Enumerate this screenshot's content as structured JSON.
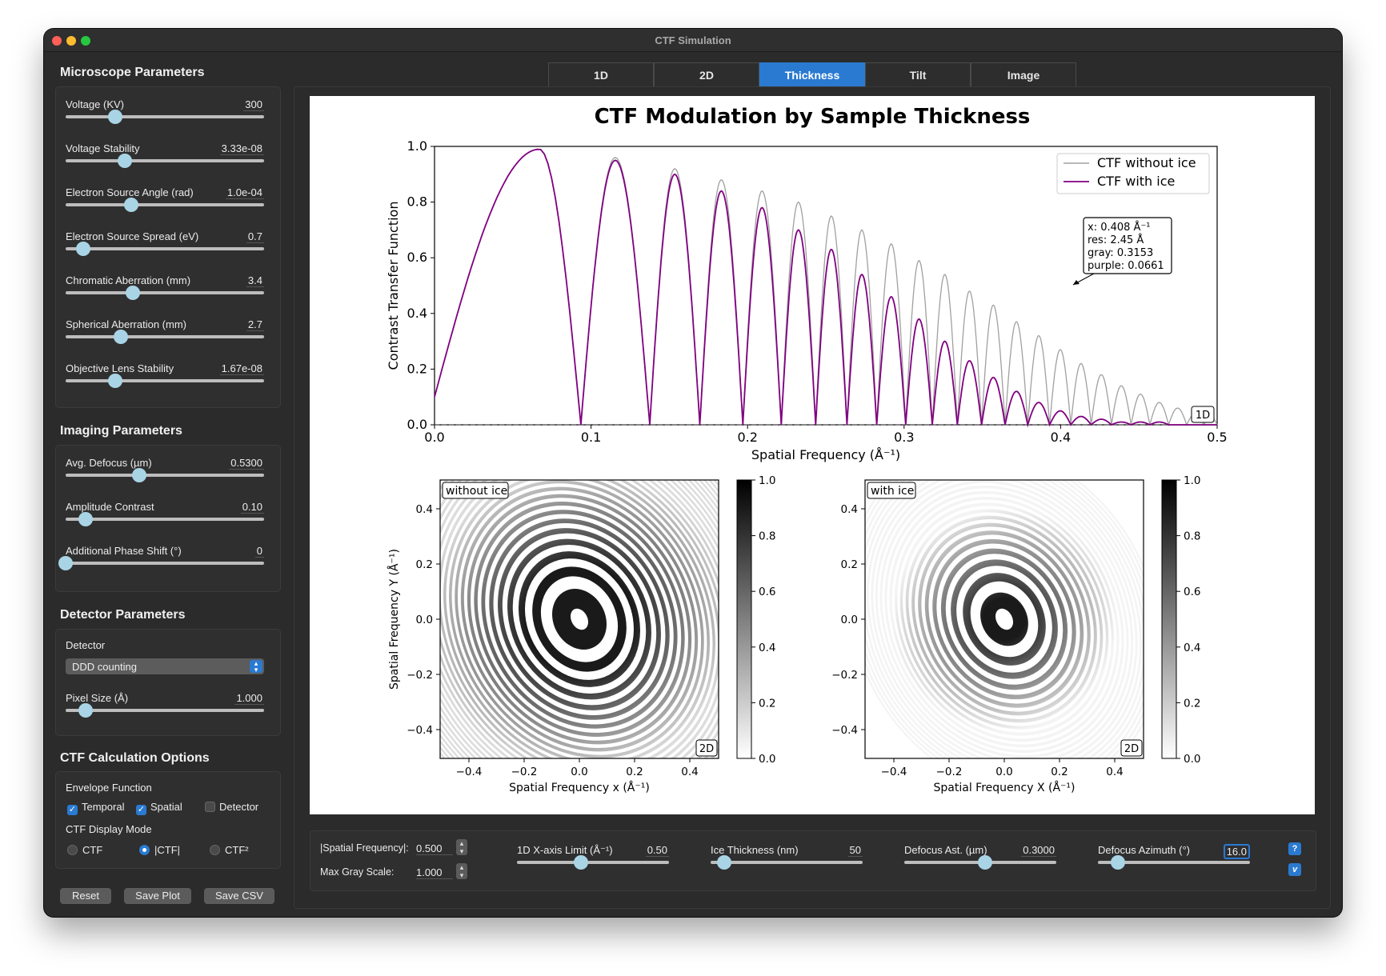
{
  "window": {
    "title": "CTF Simulation"
  },
  "tabs": [
    {
      "label": "1D",
      "active": false
    },
    {
      "label": "2D",
      "active": false
    },
    {
      "label": "Thickness",
      "active": true
    },
    {
      "label": "Tilt",
      "active": false
    },
    {
      "label": "Image",
      "active": false
    }
  ],
  "microscope": {
    "title": "Microscope Parameters",
    "sliders": [
      {
        "label": "Voltage (KV)",
        "value": "300",
        "level": 0.25
      },
      {
        "label": "Voltage Stability",
        "value": "3.33e-08",
        "level": 0.3
      },
      {
        "label": "Electron Source Angle (rad)",
        "value": "1.0e-04",
        "level": 0.33
      },
      {
        "label": "Electron Source Spread (eV)",
        "value": "0.7",
        "level": 0.09
      },
      {
        "label": "Chromatic Aberration (mm)",
        "value": "3.4",
        "level": 0.34
      },
      {
        "label": "Spherical Aberration (mm)",
        "value": "2.7",
        "level": 0.28
      },
      {
        "label": "Objective Lens Stability",
        "value": "1.67e-08",
        "level": 0.25
      }
    ]
  },
  "imaging": {
    "title": "Imaging Parameters",
    "sliders": [
      {
        "label": "Avg. Defocus (µm)",
        "value": "0.5300",
        "level": 0.37
      },
      {
        "label": "Amplitude Contrast",
        "value": "0.10",
        "level": 0.1
      },
      {
        "label": "Additional Phase Shift (°)",
        "value": "0",
        "level": 0.0
      }
    ]
  },
  "detector": {
    "title": "Detector Parameters",
    "label": "Detector",
    "selected": "DDD counting",
    "pixel_label": "Pixel Size (Å)",
    "pixel_value": "1.000",
    "pixel_level": 0.1
  },
  "ctf_options": {
    "title": "CTF Calculation Options",
    "envelope_label": "Envelope Function",
    "checks": [
      {
        "label": "Temporal",
        "checked": true
      },
      {
        "label": "Spatial",
        "checked": true
      },
      {
        "label": "Detector",
        "checked": false
      }
    ],
    "display_label": "CTF Display Mode",
    "radios": [
      {
        "label": "CTF",
        "checked": false
      },
      {
        "label": "|CTF|",
        "checked": true
      },
      {
        "label": "CTF²",
        "checked": false
      }
    ]
  },
  "buttons": {
    "reset": "Reset",
    "save_plot": "Save Plot",
    "save_csv": "Save CSV"
  },
  "bottom": {
    "freq_label": "|Spatial Frequency|:",
    "freq_value": "0.500",
    "gray_label": "Max Gray Scale:",
    "gray_value": "1.000",
    "xlimit_label": "1D X-axis Limit (Å⁻¹)",
    "xlimit_value": "0.50",
    "xlimit_level": 0.42,
    "ice_label": "Ice Thickness (nm)",
    "ice_value": "50",
    "ice_level": 0.09,
    "ast_label": "Defocus Ast. (µm)",
    "ast_value": "0.3000",
    "ast_level": 0.53,
    "azimuth_label": "Defocus Azimuth (°)",
    "azimuth_value": "16.0",
    "azimuth_level": 0.13,
    "help_icon": "?",
    "version_icon": "v"
  },
  "chart_data": [
    {
      "type": "line",
      "title": "CTF Modulation by Sample Thickness",
      "xlabel": "Spatial Frequency (Å⁻¹)",
      "ylabel": "Contrast Transfer Function",
      "xlim": [
        0.0,
        0.5
      ],
      "ylim": [
        0.0,
        1.0
      ],
      "xticks": [
        "0.0",
        "0.1",
        "0.2",
        "0.3",
        "0.4",
        "0.5"
      ],
      "yticks": [
        "0.0",
        "0.2",
        "0.4",
        "0.6",
        "0.8",
        "1.0"
      ],
      "legend_position": "top-right",
      "series": [
        {
          "name": "CTF without ice",
          "color": "#a0a0a0"
        },
        {
          "name": "CTF with ice",
          "color": "#800080"
        }
      ],
      "peak_frequencies": [
        0.067,
        0.12,
        0.155,
        0.184,
        0.21,
        0.233,
        0.254,
        0.273,
        0.292,
        0.31,
        0.326,
        0.342,
        0.357,
        0.372,
        0.386,
        0.4,
        0.413,
        0.426,
        0.439,
        0.451,
        0.463,
        0.475,
        0.486,
        0.497
      ],
      "peaks_without_ice": [
        0.99,
        0.96,
        0.92,
        0.88,
        0.84,
        0.8,
        0.75,
        0.7,
        0.65,
        0.59,
        0.54,
        0.48,
        0.43,
        0.37,
        0.32,
        0.27,
        0.22,
        0.18,
        0.14,
        0.11,
        0.08,
        0.06,
        0.04,
        0.03
      ],
      "peaks_with_ice": [
        0.99,
        0.95,
        0.9,
        0.84,
        0.78,
        0.7,
        0.63,
        0.54,
        0.46,
        0.38,
        0.3,
        0.23,
        0.17,
        0.12,
        0.08,
        0.05,
        0.03,
        0.02,
        0.01,
        0.01,
        0.01,
        0.0,
        0.0,
        0.0
      ],
      "start_value": 0.1,
      "tooltip": [
        "x: 0.408 Å⁻¹",
        "res: 2.45 Å",
        "gray: 0.3153",
        "purple: 0.0661"
      ],
      "badge": "1D"
    },
    {
      "type": "heatmap",
      "panel_label": "without ice",
      "xlabel": "Spatial Frequency x (Å⁻¹)",
      "ylabel": "Spatial Frequency Y (Å⁻¹)",
      "xticks": [
        "−0.4",
        "−0.2",
        "0.0",
        "0.2",
        "0.4"
      ],
      "yticks": [
        "0.4",
        "0.2",
        "0.0",
        "−0.2",
        "−0.4"
      ],
      "colorbar_ticks": [
        "1.0",
        "0.8",
        "0.6",
        "0.4",
        "0.2",
        "0.0"
      ],
      "badge": "2D"
    },
    {
      "type": "heatmap",
      "panel_label": "with ice",
      "xlabel": "Spatial Frequency X (Å⁻¹)",
      "xticks": [
        "−0.4",
        "−0.2",
        "0.0",
        "0.2",
        "0.4"
      ],
      "yticks": [
        "0.4",
        "0.2",
        "0.0",
        "−0.2",
        "−0.4"
      ],
      "colorbar_ticks": [
        "1.0",
        "0.8",
        "0.6",
        "0.4",
        "0.2",
        "0.0"
      ],
      "badge": "2D"
    }
  ]
}
